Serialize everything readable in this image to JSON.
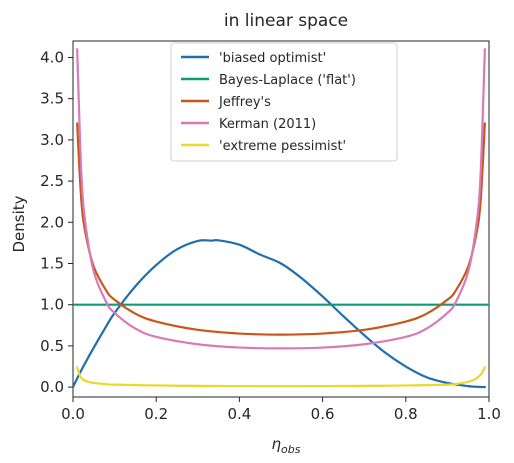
{
  "chart_data": {
    "type": "line",
    "title": "in linear space",
    "xlabel": "η_obs",
    "xlabel_main": "η",
    "xlabel_sub": "obs",
    "ylabel": "Density",
    "xlim": [
      0.0,
      1.0
    ],
    "ylim": [
      -0.12,
      4.2
    ],
    "x_ticks": [
      0.0,
      0.2,
      0.4,
      0.6,
      0.8,
      1.0
    ],
    "x_tick_labels": [
      "0.0",
      "0.2",
      "0.4",
      "0.6",
      "0.8",
      "1.0"
    ],
    "y_ticks": [
      0.0,
      0.5,
      1.0,
      1.5,
      2.0,
      2.5,
      3.0,
      3.5,
      4.0
    ],
    "y_tick_labels": [
      "0.0",
      "0.5",
      "1.0",
      "1.5",
      "2.0",
      "2.5",
      "3.0",
      "3.5",
      "4.0"
    ],
    "grid": false,
    "legend_position": "top-center",
    "series": [
      {
        "name": "'biased optimist'",
        "color": "#1f6fb0",
        "x": [
          0.0,
          0.02,
          0.05,
          0.08,
          0.1,
          0.15,
          0.2,
          0.25,
          0.3,
          0.333,
          0.35,
          0.4,
          0.45,
          0.5,
          0.55,
          0.6,
          0.65,
          0.7,
          0.75,
          0.8,
          0.85,
          0.9,
          0.95,
          0.97,
          0.99
        ],
        "y": [
          0.0,
          0.205,
          0.48,
          0.74,
          0.9,
          1.224,
          1.481,
          1.672,
          1.774,
          1.778,
          1.781,
          1.728,
          1.607,
          1.5,
          1.32,
          1.1,
          0.86,
          0.63,
          0.42,
          0.25,
          0.12,
          0.05,
          0.012,
          0.004,
          0.0
        ]
      },
      {
        "name": "Bayes-Laplace ('flat')",
        "color": "#0f9a78",
        "x": [
          0.0,
          1.0
        ],
        "y": [
          1.0,
          1.0
        ]
      },
      {
        "name": "Jeffrey's",
        "color": "#c8561b",
        "x": [
          0.01,
          0.02,
          0.03,
          0.05,
          0.08,
          0.1,
          0.15,
          0.2,
          0.3,
          0.4,
          0.5,
          0.6,
          0.7,
          0.8,
          0.85,
          0.9,
          0.92,
          0.95,
          0.97,
          0.98,
          0.99
        ],
        "y": [
          3.2,
          2.27,
          1.87,
          1.46,
          1.17,
          1.06,
          0.891,
          0.796,
          0.695,
          0.65,
          0.637,
          0.65,
          0.695,
          0.796,
          0.891,
          1.06,
          1.17,
          1.46,
          1.87,
          2.27,
          3.2
        ]
      },
      {
        "name": "Kerman (2011)",
        "color": "#d879b9",
        "x": [
          0.01,
          0.02,
          0.03,
          0.05,
          0.08,
          0.1,
          0.15,
          0.2,
          0.3,
          0.4,
          0.5,
          0.6,
          0.7,
          0.8,
          0.85,
          0.9,
          0.92,
          0.95,
          0.97,
          0.98,
          0.99
        ],
        "y": [
          4.1,
          2.6,
          1.98,
          1.4,
          1.03,
          0.9,
          0.71,
          0.61,
          0.52,
          0.48,
          0.47,
          0.48,
          0.52,
          0.61,
          0.71,
          0.9,
          1.03,
          1.4,
          1.98,
          2.6,
          4.1
        ]
      },
      {
        "name": "'extreme pessimist'",
        "color": "#ead82e",
        "x": [
          0.01,
          0.02,
          0.04,
          0.07,
          0.1,
          0.2,
          0.3,
          0.4,
          0.5,
          0.6,
          0.7,
          0.8,
          0.9,
          0.93,
          0.96,
          0.98,
          0.99
        ],
        "y": [
          0.24,
          0.11,
          0.06,
          0.04,
          0.03,
          0.02,
          0.015,
          0.013,
          0.012,
          0.013,
          0.015,
          0.02,
          0.03,
          0.045,
          0.08,
          0.15,
          0.24
        ]
      }
    ]
  }
}
